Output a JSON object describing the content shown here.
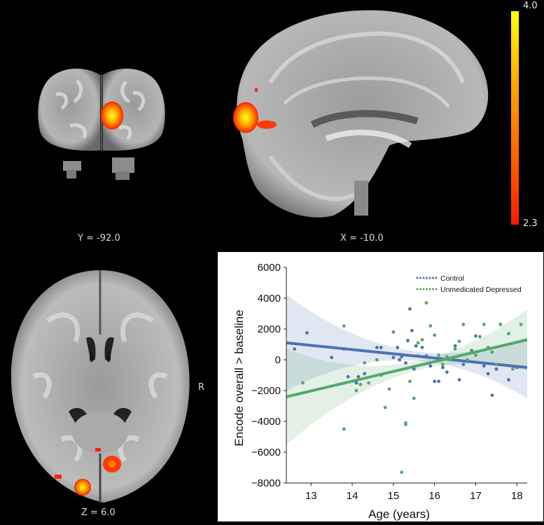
{
  "slices": {
    "coronal": {
      "label": "Y = -92.0"
    },
    "sagittal": {
      "label": "X = -10.0"
    },
    "axial": {
      "label": "Z = 6.0",
      "orientation": "R"
    }
  },
  "colorbar": {
    "max_label": "4.0",
    "min_label": "2.3",
    "colors": [
      "#ff1a00",
      "#ff6a00",
      "#ffb000",
      "#ffff00"
    ]
  },
  "chart_data": {
    "type": "scatter",
    "xlabel": "Age (years)",
    "ylabel": "Encode overall > baseline",
    "xlim": [
      12.4,
      18.25
    ],
    "ylim": [
      -8000,
      6000
    ],
    "xticks": [
      "13",
      "14",
      "15",
      "16",
      "17",
      "18"
    ],
    "yticks": [
      "6000",
      "4000",
      "2000",
      "0",
      "−2000",
      "−4000",
      "−6000",
      "−8000"
    ],
    "legend_position": "top-right",
    "series": [
      {
        "name": "Control",
        "color": "#4c72b0",
        "points": [
          [
            12.6,
            700
          ],
          [
            12.9,
            1750
          ],
          [
            13.5,
            150
          ],
          [
            13.8,
            700
          ],
          [
            13.9,
            -1100
          ],
          [
            14.1,
            -1500
          ],
          [
            14.15,
            -1100
          ],
          [
            14.3,
            -900
          ],
          [
            14.6,
            800
          ],
          [
            14.7,
            800
          ],
          [
            15.0,
            150
          ],
          [
            15.1,
            800
          ],
          [
            15.15,
            0
          ],
          [
            15.2,
            200
          ],
          [
            15.3,
            -200
          ],
          [
            15.35,
            1250
          ],
          [
            15.4,
            3300
          ],
          [
            15.45,
            1900
          ],
          [
            15.5,
            -600
          ],
          [
            15.55,
            900
          ],
          [
            15.6,
            250
          ],
          [
            15.7,
            800
          ],
          [
            15.8,
            250
          ],
          [
            15.9,
            -400
          ],
          [
            16.0,
            -1400
          ],
          [
            16.1,
            -1400
          ],
          [
            16.2,
            -500
          ],
          [
            16.3,
            -800
          ],
          [
            16.5,
            900
          ],
          [
            16.6,
            -1300
          ],
          [
            16.7,
            -300
          ],
          [
            16.8,
            -100
          ],
          [
            16.9,
            600
          ],
          [
            17.0,
            1550
          ],
          [
            17.2,
            -400
          ],
          [
            17.3,
            -900
          ],
          [
            17.4,
            -2300
          ],
          [
            17.5,
            -600
          ],
          [
            17.6,
            2300
          ],
          [
            17.8,
            -1300
          ],
          [
            18.0,
            -500
          ]
        ],
        "fit": [
          [
            12.4,
            1100
          ],
          [
            18.25,
            -500
          ]
        ]
      },
      {
        "name": "Unmedicated Depressed",
        "color": "#55a868",
        "points": [
          [
            12.8,
            -1500
          ],
          [
            13.8,
            2200
          ],
          [
            13.8,
            -4500
          ],
          [
            14.1,
            -2000
          ],
          [
            14.2,
            -1600
          ],
          [
            14.3,
            -200
          ],
          [
            14.4,
            -1500
          ],
          [
            14.6,
            0
          ],
          [
            14.7,
            -1000
          ],
          [
            14.8,
            -3100
          ],
          [
            14.9,
            -1900
          ],
          [
            15.0,
            1800
          ],
          [
            15.2,
            -7300
          ],
          [
            15.3,
            -4100
          ],
          [
            15.3,
            -4200
          ],
          [
            15.4,
            -1400
          ],
          [
            15.5,
            -2500
          ],
          [
            15.6,
            1100
          ],
          [
            15.7,
            1300
          ],
          [
            15.8,
            3700
          ],
          [
            15.9,
            2200
          ],
          [
            16.0,
            1600
          ],
          [
            16.1,
            300
          ],
          [
            16.2,
            -300
          ],
          [
            16.3,
            200
          ],
          [
            16.4,
            0
          ],
          [
            16.5,
            700
          ],
          [
            16.6,
            1200
          ],
          [
            16.7,
            2300
          ],
          [
            16.8,
            0
          ],
          [
            16.9,
            500
          ],
          [
            17.0,
            300
          ],
          [
            17.1,
            1500
          ],
          [
            17.2,
            2300
          ],
          [
            17.3,
            800
          ],
          [
            17.4,
            500
          ],
          [
            17.5,
            -300
          ],
          [
            17.6,
            2300
          ],
          [
            17.8,
            1700
          ],
          [
            17.9,
            -600
          ],
          [
            18.1,
            2300
          ]
        ],
        "fit": [
          [
            12.4,
            -2400
          ],
          [
            18.25,
            1300
          ]
        ]
      }
    ]
  }
}
